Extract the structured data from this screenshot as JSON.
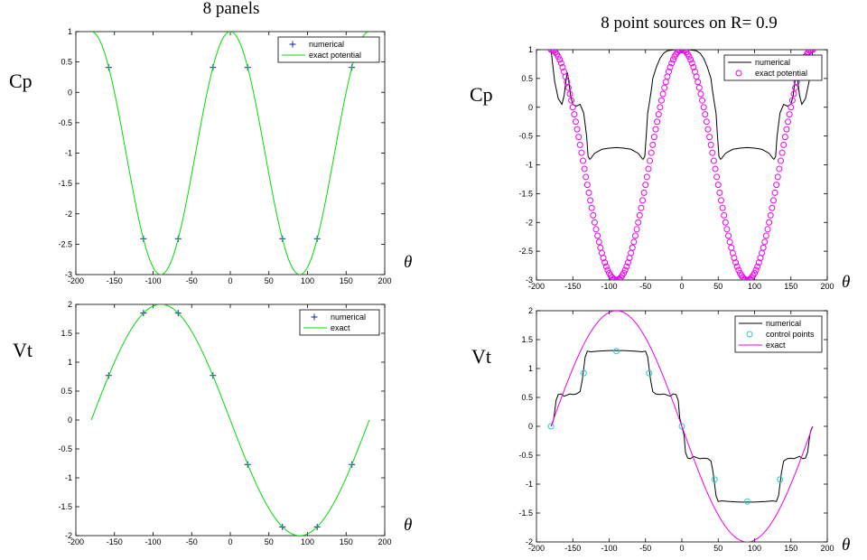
{
  "titles": {
    "left": "8 panels",
    "right": "8 point sources on R= 0.9"
  },
  "colors": {
    "green": "#00dd00",
    "blue": "#2233aa",
    "magenta": "#ee00ee",
    "black": "#000000",
    "cyan": "#22cccc"
  },
  "chart_data": [
    {
      "id": "cp-left",
      "type": "line",
      "ylabel": "Cp",
      "xlabel": "θ",
      "xlim": [
        -200,
        200
      ],
      "ylim": [
        -3,
        1
      ],
      "xticks": [
        -200,
        -150,
        -100,
        -50,
        0,
        50,
        100,
        150,
        200
      ],
      "yticks": [
        -3,
        -2.5,
        -2,
        -1.5,
        -1,
        -0.5,
        0,
        0.5,
        1
      ],
      "legend": "top-right",
      "series": [
        {
          "name": "numerical",
          "style": "plus",
          "color": "#2233aa",
          "x": [
            -157.5,
            -112.5,
            -67.5,
            -22.5,
            22.5,
            67.5,
            112.5,
            157.5
          ],
          "y": [
            0.41,
            -2.41,
            -2.41,
            0.41,
            0.41,
            -2.41,
            -2.41,
            0.41
          ]
        },
        {
          "name": "exact potential",
          "style": "line",
          "color": "#00dd00",
          "formula": "1-4sin^2",
          "xrange": [
            -180,
            180
          ],
          "step": 2
        }
      ]
    },
    {
      "id": "cp-right",
      "type": "line",
      "ylabel": "Cp",
      "xlabel": "θ",
      "xlim": [
        -200,
        200
      ],
      "ylim": [
        -3,
        1
      ],
      "xticks": [
        -200,
        -150,
        -100,
        -50,
        0,
        50,
        100,
        150,
        200
      ],
      "yticks": [
        -3,
        -2.5,
        -2,
        -1.5,
        -1,
        -0.5,
        0,
        0.5,
        1
      ],
      "legend": "top-right",
      "series": [
        {
          "name": "numerical",
          "style": "line",
          "color": "#000000",
          "x": [
            -180,
            -175,
            -170,
            -165,
            -162,
            -159,
            -157.5,
            -156,
            -153,
            -150,
            -145,
            -140,
            -135,
            -131,
            -129,
            -127,
            -126,
            -120,
            -110,
            -100,
            -90,
            -80,
            -70,
            -60,
            -54,
            -53,
            -51,
            -49,
            -47,
            -45,
            -42,
            -40,
            -35,
            -30,
            -25,
            -20,
            -15,
            -10,
            -5,
            0,
            5,
            10,
            15,
            20,
            25,
            30,
            35,
            40,
            42,
            45,
            47,
            49,
            51,
            53,
            54,
            60,
            70,
            80,
            90,
            100,
            110,
            120,
            126,
            127,
            129,
            131,
            135,
            140,
            145,
            150,
            153,
            156,
            157.5,
            159,
            162,
            165,
            170,
            175,
            180
          ],
          "y": [
            1.0,
            0.45,
            0.15,
            0.05,
            0.2,
            0.5,
            0.6,
            0.5,
            0.2,
            0.05,
            0.02,
            0.05,
            -0.1,
            -0.5,
            -0.85,
            -0.9,
            -0.9,
            -0.8,
            -0.73,
            -0.71,
            -0.7,
            -0.71,
            -0.73,
            -0.8,
            -0.9,
            -0.9,
            -0.85,
            -0.5,
            -0.1,
            0.05,
            0.3,
            0.5,
            0.7,
            0.85,
            0.94,
            0.98,
            0.99,
            1.0,
            1.0,
            1.0,
            1.0,
            1.0,
            0.99,
            0.98,
            0.94,
            0.85,
            0.7,
            0.5,
            0.3,
            0.05,
            -0.1,
            -0.5,
            -0.85,
            -0.9,
            -0.9,
            -0.8,
            -0.73,
            -0.71,
            -0.7,
            -0.71,
            -0.73,
            -0.8,
            -0.9,
            -0.9,
            -0.85,
            -0.5,
            -0.1,
            0.05,
            0.02,
            0.05,
            0.2,
            0.5,
            0.6,
            0.5,
            0.2,
            0.05,
            0.15,
            0.45,
            1.0
          ]
        },
        {
          "name": "exact potential",
          "style": "circle",
          "color": "#ee00ee",
          "formula": "1-4sin^2",
          "xrange": [
            -180,
            180
          ],
          "step": 2
        }
      ]
    },
    {
      "id": "vt-left",
      "type": "line",
      "ylabel": "Vt",
      "xlabel": "θ",
      "xlim": [
        -200,
        200
      ],
      "ylim": [
        -2,
        2
      ],
      "xticks": [
        -200,
        -150,
        -100,
        -50,
        0,
        50,
        100,
        150,
        200
      ],
      "yticks": [
        -2,
        -1.5,
        -1,
        -0.5,
        0,
        0.5,
        1,
        1.5,
        2
      ],
      "legend": "top-right",
      "series": [
        {
          "name": "numerical",
          "style": "plus",
          "color": "#2233aa",
          "x": [
            -157.5,
            -112.5,
            -67.5,
            -22.5,
            22.5,
            67.5,
            112.5,
            157.5
          ],
          "y": [
            0.77,
            1.85,
            1.85,
            0.77,
            -0.77,
            -1.85,
            -1.85,
            -0.77
          ]
        },
        {
          "name": "exact",
          "style": "line",
          "color": "#00dd00",
          "formula": "-2sin",
          "xrange": [
            -180,
            180
          ],
          "step": 2
        }
      ]
    },
    {
      "id": "vt-right",
      "type": "line",
      "ylabel": "Vt",
      "xlabel": "θ",
      "xlim": [
        -200,
        200
      ],
      "ylim": [
        -2,
        2
      ],
      "xticks": [
        -200,
        -150,
        -100,
        -50,
        0,
        50,
        100,
        150,
        200
      ],
      "yticks": [
        -2,
        -1.5,
        -1,
        -0.5,
        0,
        0.5,
        1,
        1.5,
        2
      ],
      "legend": "top-right",
      "series": [
        {
          "name": "numerical",
          "style": "line",
          "color": "#000000",
          "x": [
            -180,
            -178,
            -176,
            -173,
            -170,
            -166,
            -162,
            -158,
            -154,
            -150,
            -145,
            -140,
            -137,
            -135,
            -133,
            -130,
            -125,
            -115,
            -100,
            -90,
            -80,
            -65,
            -55,
            -50,
            -47,
            -45,
            -43,
            -40,
            -36,
            -30,
            -25,
            -20,
            -16,
            -12,
            -8,
            -5,
            -3,
            0,
            3,
            5,
            8,
            12,
            16,
            20,
            25,
            30,
            36,
            40,
            43,
            45,
            47,
            50,
            55,
            65,
            80,
            90,
            100,
            115,
            125,
            130,
            133,
            135,
            137,
            140,
            145,
            150,
            154,
            158,
            162,
            166,
            170,
            173,
            176,
            178,
            180
          ],
          "y": [
            0.0,
            0.05,
            0.15,
            0.45,
            0.55,
            0.56,
            0.52,
            0.54,
            0.56,
            0.55,
            0.56,
            0.6,
            0.8,
            1.0,
            1.2,
            1.3,
            1.29,
            1.3,
            1.31,
            1.31,
            1.31,
            1.3,
            1.29,
            1.3,
            1.2,
            1.0,
            0.8,
            0.6,
            0.56,
            0.55,
            0.56,
            0.54,
            0.52,
            0.56,
            0.55,
            0.45,
            0.15,
            0.0,
            -0.15,
            -0.45,
            -0.55,
            -0.56,
            -0.52,
            -0.54,
            -0.56,
            -0.55,
            -0.56,
            -0.6,
            -0.8,
            -1.0,
            -1.2,
            -1.3,
            -1.29,
            -1.3,
            -1.31,
            -1.31,
            -1.31,
            -1.3,
            -1.29,
            -1.3,
            -1.2,
            -1.0,
            -0.8,
            -0.6,
            -0.56,
            -0.55,
            -0.56,
            -0.54,
            -0.52,
            -0.56,
            -0.55,
            -0.45,
            -0.15,
            -0.05,
            0.0
          ]
        },
        {
          "name": "control points",
          "style": "circle",
          "color": "#22cccc",
          "x": [
            -180,
            -135,
            -90,
            -45,
            0,
            45,
            90,
            135
          ],
          "y": [
            0.0,
            0.92,
            1.3,
            0.92,
            0.0,
            -0.92,
            -1.3,
            -0.92
          ]
        },
        {
          "name": "exact",
          "style": "line",
          "color": "#ee00ee",
          "formula": "-2sin",
          "xrange": [
            -180,
            180
          ],
          "step": 2
        }
      ]
    }
  ]
}
